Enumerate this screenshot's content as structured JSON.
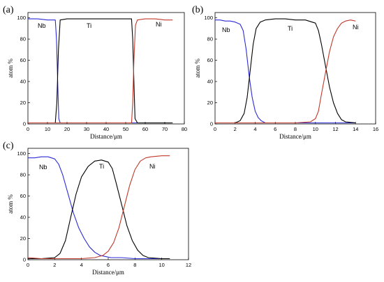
{
  "chart_data": [
    {
      "panel": "(a)",
      "type": "line",
      "xlabel": "Distance/μm",
      "ylabel": "atom %",
      "xlim": [
        0,
        80
      ],
      "ylim": [
        0,
        105
      ],
      "xticks": [
        0,
        10,
        20,
        30,
        40,
        50,
        60,
        70,
        80
      ],
      "yticks": [
        0,
        20,
        40,
        60,
        80,
        100
      ],
      "series": [
        {
          "name": "Nb",
          "color": "#2b2bd6",
          "x": [
            0,
            5,
            10,
            14,
            14.6,
            15.2,
            15.8,
            16.5,
            20,
            30,
            40,
            50,
            55,
            60,
            70,
            74
          ],
          "y": [
            99,
            99,
            98,
            98,
            80,
            40,
            5,
            1,
            1,
            1,
            1,
            1,
            1,
            1,
            1,
            1
          ]
        },
        {
          "name": "Ti",
          "color": "#000000",
          "x": [
            0,
            10,
            14,
            14.8,
            15.6,
            16.5,
            20,
            30,
            40,
            50,
            53,
            53.6,
            54.2,
            54.8,
            56,
            60,
            70,
            74
          ],
          "y": [
            1,
            1,
            1,
            20,
            70,
            98,
            99,
            99,
            99,
            99,
            99,
            80,
            40,
            5,
            1,
            1,
            1,
            1
          ]
        },
        {
          "name": "Ni",
          "color": "#c0392b",
          "x": [
            0,
            10,
            20,
            30,
            40,
            50,
            53,
            53.6,
            54.2,
            55,
            56,
            60,
            65,
            70,
            74
          ],
          "y": [
            1,
            1,
            1,
            1,
            1,
            1,
            1,
            20,
            60,
            93,
            98,
            99,
            99,
            98,
            98
          ]
        }
      ]
    },
    {
      "panel": "(b)",
      "type": "line",
      "xlabel": "Distance/μm",
      "ylabel": "atom %",
      "xlim": [
        0,
        16
      ],
      "ylim": [
        0,
        105
      ],
      "xticks": [
        0,
        2,
        4,
        6,
        8,
        10,
        12,
        14,
        16
      ],
      "yticks": [
        0,
        20,
        40,
        60,
        80,
        100
      ],
      "series": [
        {
          "name": "Nb",
          "color": "#2b2bd6",
          "x": [
            0,
            0.5,
            1,
            1.5,
            2,
            2.5,
            2.8,
            3.1,
            3.4,
            3.7,
            4,
            4.3,
            4.6,
            5,
            6,
            8,
            10,
            12,
            14
          ],
          "y": [
            98,
            98,
            97,
            97,
            96,
            94,
            88,
            70,
            45,
            25,
            12,
            6,
            3,
            1,
            1,
            1,
            1,
            1,
            1
          ]
        },
        {
          "name": "Ti",
          "color": "#000000",
          "x": [
            0,
            1,
            2,
            2.5,
            2.9,
            3.2,
            3.5,
            3.8,
            4.1,
            4.5,
            5,
            6,
            7,
            8,
            9,
            10,
            10.3,
            10.6,
            11,
            11.4,
            11.8,
            12.2,
            12.6,
            13,
            14
          ],
          "y": [
            1,
            1,
            1,
            3,
            10,
            25,
            50,
            75,
            90,
            96,
            98,
            99,
            99,
            98,
            98,
            95,
            88,
            75,
            55,
            35,
            20,
            10,
            4,
            2,
            1
          ]
        },
        {
          "name": "Ni",
          "color": "#c0392b",
          "x": [
            0,
            2,
            4,
            6,
            8,
            9.5,
            10,
            10.3,
            10.6,
            11,
            11.4,
            11.8,
            12.2,
            12.6,
            13,
            13.5,
            14
          ],
          "y": [
            1,
            1,
            1,
            1,
            1,
            2,
            5,
            12,
            28,
            48,
            68,
            82,
            90,
            95,
            97,
            98,
            97
          ]
        }
      ]
    },
    {
      "panel": "(c)",
      "type": "line",
      "xlabel": "Distance/μm",
      "ylabel": "atom %",
      "xlim": [
        0,
        12
      ],
      "ylim": [
        0,
        105
      ],
      "xticks": [
        0,
        2,
        4,
        6,
        8,
        10,
        12
      ],
      "yticks": [
        0,
        20,
        40,
        60,
        80,
        100
      ],
      "series": [
        {
          "name": "Nb",
          "color": "#2b2bd6",
          "x": [
            0,
            0.5,
            1,
            1.5,
            2,
            2.3,
            2.6,
            3,
            3.4,
            3.8,
            4.2,
            4.6,
            5,
            5.4,
            5.8,
            6.2,
            7,
            8,
            9,
            10,
            10.6
          ],
          "y": [
            96,
            96,
            97,
            97,
            95,
            90,
            80,
            62,
            44,
            30,
            20,
            12,
            7,
            4,
            3,
            2,
            2,
            1,
            1,
            1,
            1
          ]
        },
        {
          "name": "Ti",
          "color": "#000000",
          "x": [
            0,
            1,
            2,
            2.4,
            2.8,
            3.2,
            3.6,
            4,
            4.5,
            5,
            5.5,
            6,
            6.3,
            6.6,
            7,
            7.4,
            7.8,
            8.2,
            8.6,
            9,
            10,
            10.6
          ],
          "y": [
            1,
            1,
            2,
            6,
            18,
            40,
            62,
            78,
            88,
            93,
            94,
            92,
            86,
            72,
            52,
            32,
            18,
            9,
            4,
            2,
            1,
            1
          ]
        },
        {
          "name": "Ni",
          "color": "#c0392b",
          "x": [
            0,
            1,
            2,
            3,
            4,
            5,
            5.6,
            6,
            6.4,
            6.8,
            7.2,
            7.6,
            8,
            8.4,
            8.8,
            9.2,
            10,
            10.6
          ],
          "y": [
            2,
            1,
            1,
            1,
            1,
            2,
            4,
            8,
            16,
            30,
            50,
            70,
            85,
            93,
            96,
            97,
            98,
            98
          ]
        }
      ]
    }
  ]
}
